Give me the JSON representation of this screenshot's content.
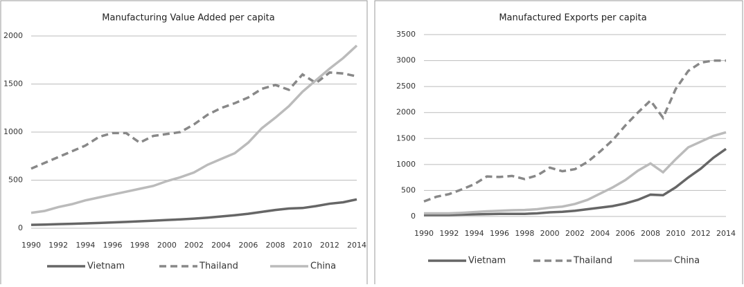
{
  "chart_data": [
    {
      "type": "line",
      "title": "Manufacturing Value Added per capita",
      "x": [
        1990,
        1991,
        1992,
        1993,
        1994,
        1995,
        1996,
        1997,
        1998,
        1999,
        2000,
        2001,
        2002,
        2003,
        2004,
        2005,
        2006,
        2007,
        2008,
        2009,
        2010,
        2011,
        2012,
        2013,
        2014
      ],
      "xlim": [
        1990,
        2014
      ],
      "xticks": [
        1990,
        1992,
        1994,
        1996,
        1998,
        2000,
        2002,
        2004,
        2006,
        2008,
        2010,
        2012,
        2014
      ],
      "ylim": [
        0,
        2000
      ],
      "yticks": [
        0,
        500,
        1000,
        1500,
        2000
      ],
      "grid": true,
      "series": [
        {
          "name": "Vietnam",
          "color": "#666666",
          "dash": false,
          "values": [
            35,
            38,
            42,
            46,
            50,
            55,
            60,
            66,
            72,
            78,
            85,
            92,
            100,
            110,
            122,
            135,
            150,
            170,
            190,
            205,
            210,
            230,
            255,
            270,
            300
          ]
        },
        {
          "name": "Thailand",
          "color": "#888888",
          "dash": true,
          "values": [
            620,
            680,
            740,
            800,
            860,
            950,
            990,
            990,
            890,
            960,
            980,
            1000,
            1080,
            1180,
            1250,
            1300,
            1360,
            1450,
            1490,
            1440,
            1600,
            1510,
            1620,
            1610,
            1580
          ]
        },
        {
          "name": "China",
          "color": "#bbbbbb",
          "dash": false,
          "values": [
            160,
            180,
            220,
            250,
            290,
            320,
            350,
            380,
            410,
            440,
            490,
            530,
            580,
            660,
            720,
            780,
            890,
            1040,
            1150,
            1270,
            1420,
            1540,
            1660,
            1770,
            1900
          ]
        }
      ]
    },
    {
      "type": "line",
      "title": "Manufactured Exports per capita",
      "x": [
        1990,
        1991,
        1992,
        1993,
        1994,
        1995,
        1996,
        1997,
        1998,
        1999,
        2000,
        2001,
        2002,
        2003,
        2004,
        2005,
        2006,
        2007,
        2008,
        2009,
        2010,
        2011,
        2012,
        2013,
        2014
      ],
      "xlim": [
        1990,
        2014
      ],
      "xticks": [
        1990,
        1992,
        1994,
        1996,
        1998,
        2000,
        2002,
        2004,
        2006,
        2008,
        2010,
        2012,
        2014
      ],
      "ylim": [
        0,
        3500
      ],
      "yticks": [
        0,
        500,
        1000,
        1500,
        2000,
        2500,
        3000,
        3500
      ],
      "grid": true,
      "series": [
        {
          "name": "Vietnam",
          "color": "#666666",
          "dash": false,
          "values": [
            30,
            30,
            30,
            35,
            40,
            45,
            50,
            50,
            50,
            60,
            80,
            90,
            110,
            140,
            170,
            200,
            250,
            320,
            420,
            410,
            560,
            750,
            920,
            1130,
            1300
          ]
        },
        {
          "name": "Thailand",
          "color": "#888888",
          "dash": true,
          "values": [
            290,
            380,
            430,
            520,
            620,
            770,
            760,
            780,
            720,
            790,
            940,
            870,
            910,
            1050,
            1250,
            1470,
            1750,
            2000,
            2230,
            1900,
            2450,
            2800,
            2960,
            3000,
            3000
          ]
        },
        {
          "name": "China",
          "color": "#bbbbbb",
          "dash": false,
          "values": [
            60,
            60,
            60,
            70,
            85,
            100,
            110,
            120,
            125,
            140,
            170,
            190,
            240,
            320,
            440,
            560,
            700,
            880,
            1020,
            850,
            1100,
            1330,
            1440,
            1550,
            1620
          ]
        }
      ]
    }
  ]
}
